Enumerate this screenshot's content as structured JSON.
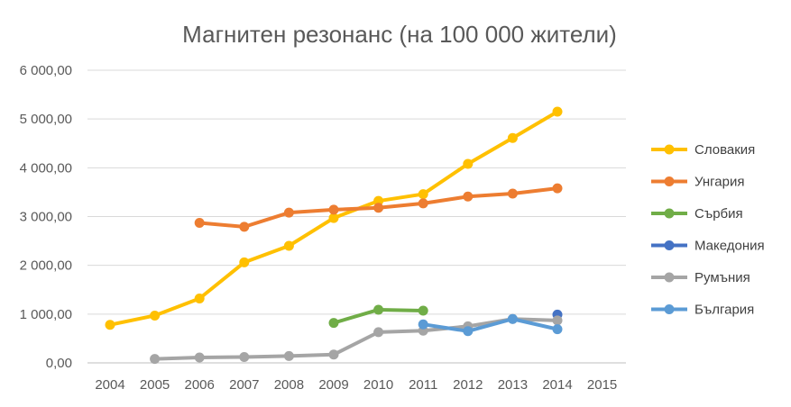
{
  "chart_data": {
    "type": "line",
    "title": "Магнитен резонанс (на 100 000 жители)",
    "xlabel": "",
    "ylabel": "",
    "ylim": [
      0,
      6000
    ],
    "y_ticks": [
      "0,00",
      "1 000,00",
      "2 000,00",
      "3 000,00",
      "4 000,00",
      "5 000,00",
      "6 000,00"
    ],
    "categories": [
      "2004",
      "2005",
      "2006",
      "2007",
      "2008",
      "2009",
      "2010",
      "2011",
      "2012",
      "2013",
      "2014",
      "2015"
    ],
    "grid": "horizontal",
    "legend_position": "right",
    "series": [
      {
        "name": "Словакия",
        "color": "#FFC000",
        "values": [
          780,
          970,
          1320,
          2060,
          2400,
          2970,
          3320,
          3460,
          4080,
          4610,
          5150,
          null
        ]
      },
      {
        "name": "Унгария",
        "color": "#ED7D31",
        "values": [
          null,
          null,
          2870,
          2790,
          3080,
          3140,
          3180,
          3270,
          3410,
          3470,
          3580,
          null
        ]
      },
      {
        "name": "Сърбия",
        "color": "#70AD47",
        "values": [
          null,
          null,
          null,
          null,
          null,
          820,
          1090,
          1070,
          null,
          null,
          null,
          null
        ]
      },
      {
        "name": "Македония",
        "color": "#4472C4",
        "values": [
          null,
          null,
          null,
          null,
          null,
          null,
          null,
          null,
          null,
          null,
          990,
          null
        ]
      },
      {
        "name": "Румъния",
        "color": "#A5A5A5",
        "values": [
          null,
          80,
          110,
          120,
          140,
          170,
          630,
          660,
          750,
          900,
          870,
          null
        ]
      },
      {
        "name": "България",
        "color": "#5B9BD5",
        "values": [
          null,
          null,
          null,
          null,
          null,
          null,
          null,
          790,
          650,
          900,
          690,
          null
        ]
      }
    ]
  }
}
